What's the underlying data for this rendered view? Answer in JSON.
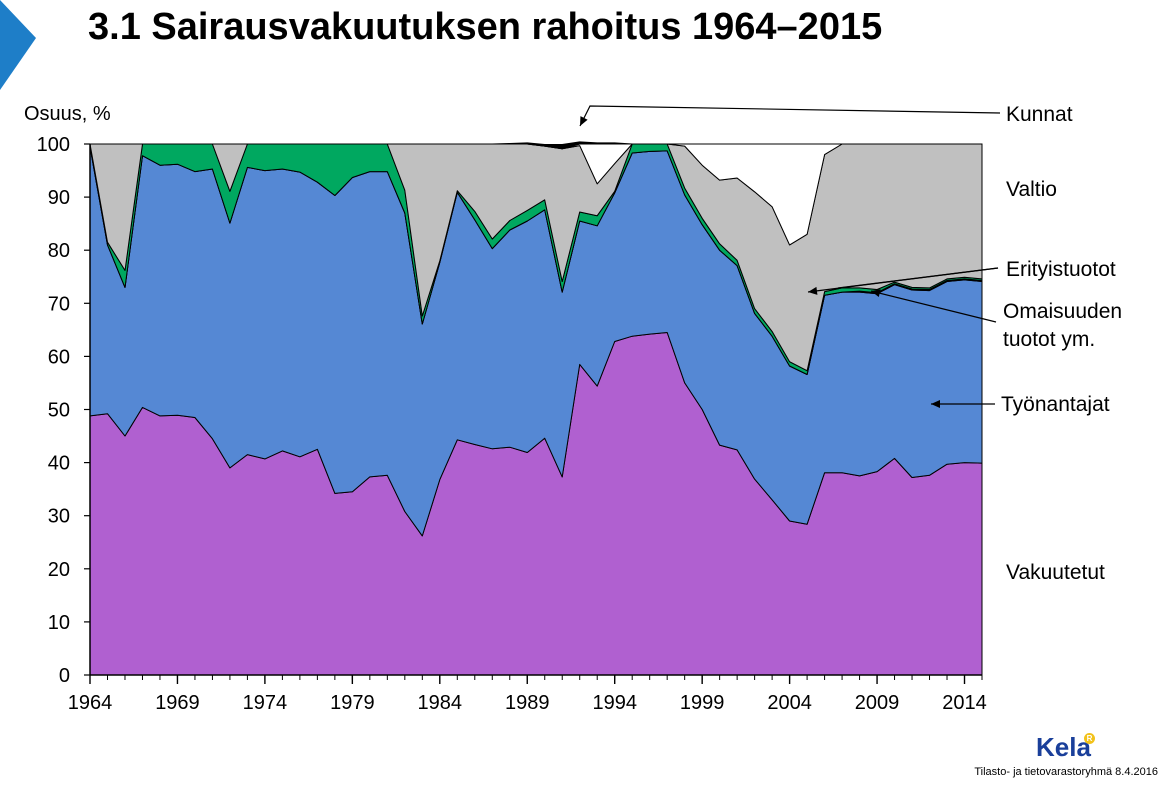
{
  "slide": {
    "title": "3.1 Sairausvakuutuksen rahoitus 1964–2015",
    "footer": "Tilasto- ja tietovarastoryhmä 8.4.2016",
    "logo_text": "Kela",
    "logo_mark": "R",
    "colors": {
      "corner": "#1e7ec8",
      "logo": "#1a3f9a",
      "logo_mark": "#f2c21b"
    }
  },
  "chart_data": {
    "type": "area",
    "stacked": true,
    "ylabel": "Osuus, %",
    "xlabel": "",
    "xlim": [
      1964,
      2015
    ],
    "ylim": [
      0,
      100
    ],
    "yticks": [
      0,
      10,
      20,
      30,
      40,
      50,
      60,
      70,
      80,
      90,
      100
    ],
    "xticks": [
      1964,
      1969,
      1974,
      1979,
      1984,
      1989,
      1994,
      1999,
      2004,
      2009,
      2014
    ],
    "grid": false,
    "legend": "inline labels right",
    "x": [
      1964,
      1965,
      1966,
      1967,
      1968,
      1969,
      1970,
      1971,
      1972,
      1973,
      1974,
      1975,
      1976,
      1977,
      1978,
      1979,
      1980,
      1981,
      1982,
      1983,
      1984,
      1985,
      1986,
      1987,
      1988,
      1989,
      1990,
      1991,
      1992,
      1993,
      1994,
      1995,
      1996,
      1997,
      1998,
      1999,
      2000,
      2001,
      2002,
      2003,
      2004,
      2005,
      2006,
      2007,
      2008,
      2009,
      2010,
      2011,
      2012,
      2013,
      2014,
      2015
    ],
    "series": [
      {
        "name": "Vakuutetut",
        "color": "#b060d0",
        "values": [
          48.8,
          49.2,
          45,
          50.4,
          48.8,
          48.9,
          48.5,
          44.5,
          39,
          41.5,
          40.7,
          42.2,
          41.1,
          42.5,
          34.2,
          34.5,
          37.3,
          37.6,
          30.8,
          26.2,
          36.8,
          44.3,
          43.4,
          42.6,
          42.9,
          41.9,
          44.6,
          37.3,
          58.5,
          54.4,
          62.8,
          63.8,
          64.2,
          64.5,
          55,
          50,
          43.3,
          42.4,
          36.9,
          33,
          29,
          28.4,
          38.1,
          38.1,
          37.5,
          38.3,
          40.8,
          37.2,
          37.6,
          39.7,
          40,
          39.9
        ]
      },
      {
        "name": "Työnantajat",
        "color": "#5588d4",
        "values": [
          50.7,
          31.8,
          28,
          47.4,
          47.2,
          47.3,
          46.3,
          50.8,
          46.1,
          54.1,
          54.3,
          53.1,
          53.6,
          50.3,
          56.1,
          59.2,
          57.5,
          57.2,
          56.2,
          39.9,
          40.9,
          46.6,
          42.3,
          37.7,
          40.9,
          43.6,
          43,
          34.8,
          27,
          30.2,
          28,
          34.5,
          34.4,
          34.2,
          35.4,
          34.8,
          36.7,
          34.7,
          31.2,
          30.8,
          29.2,
          28.2,
          33.4,
          34,
          34.6,
          33.5,
          32.7,
          35.3,
          34.8,
          34.4,
          34.4,
          34.2
        ]
      },
      {
        "name": "Erityistuotot",
        "color": "#000000",
        "values": [
          0,
          0,
          0,
          0,
          0,
          0,
          0,
          0,
          0,
          0,
          0,
          0,
          0,
          0,
          0,
          0,
          0,
          0,
          0,
          0,
          0,
          0,
          0,
          0,
          0,
          0,
          0,
          0,
          0,
          0,
          0,
          0,
          0,
          0,
          0,
          0,
          0,
          0,
          0,
          0,
          0,
          0,
          0,
          0,
          0.2,
          0.2,
          0.2,
          0.2,
          0.2,
          0.2,
          0.2,
          0.2
        ]
      },
      {
        "name": "Omaisuuden tuotot ym.",
        "color": "#00a860",
        "values": [
          0.5,
          0.5,
          3.2,
          2.2,
          4,
          3.8,
          5.2,
          4.7,
          6,
          4.4,
          5,
          4.7,
          5.3,
          7.2,
          9.7,
          6.3,
          5.2,
          5.2,
          4.3,
          1.5,
          0.3,
          0.3,
          1.6,
          1.8,
          1.8,
          2,
          1.9,
          2,
          1.7,
          1.9,
          0.3,
          1.7,
          1.4,
          1.3,
          1.3,
          1.2,
          1.2,
          1,
          0.9,
          0.9,
          0.8,
          0.7,
          0.7,
          0.8,
          0.6,
          0.6,
          0.3,
          0.3,
          0.3,
          0.3,
          0.3,
          0.3
        ]
      },
      {
        "name": "Valtio",
        "color": "#c0c0c0",
        "values": [
          0,
          18.5,
          23.8,
          0,
          0,
          0,
          0,
          0,
          8.9,
          0,
          0,
          0,
          0,
          0,
          0,
          0,
          0,
          0,
          8.7,
          32.4,
          22,
          8.8,
          12.7,
          17.9,
          14.4,
          12.5,
          10.1,
          25,
          12.5,
          6,
          5.2,
          0,
          0,
          0,
          7.9,
          10,
          12,
          15.5,
          22,
          23.5,
          22,
          25.7,
          25.8,
          27.1,
          27.1,
          27.4,
          26,
          27,
          27.1,
          25.4,
          25.1,
          25.4
        ]
      },
      {
        "name": "Erityistuotot (valkoinen)",
        "color": "#ffffff",
        "values": [
          0,
          0,
          0,
          0,
          0,
          0,
          0,
          0,
          0,
          0,
          0,
          0,
          0,
          0,
          0,
          0,
          0,
          0,
          0,
          0,
          0,
          0,
          0,
          0,
          0,
          0,
          0,
          0,
          0.3,
          7.5,
          3.7,
          0,
          0,
          0,
          0.4,
          4,
          6.8,
          6.4,
          9,
          11.8,
          19,
          17,
          2,
          0,
          0,
          0,
          0,
          0,
          0,
          0,
          0,
          0
        ]
      },
      {
        "name": "Kunnat",
        "color": "#000000",
        "values": [
          0,
          0,
          0,
          0,
          0,
          0,
          0,
          0,
          0,
          0,
          0,
          0,
          0,
          0,
          0,
          0,
          0,
          0,
          0,
          0,
          0,
          0,
          0,
          0,
          0.1,
          0.2,
          0.3,
          0.8,
          0.4,
          0.2,
          0.2,
          0,
          0,
          0,
          0,
          0,
          0,
          0,
          0,
          0,
          0,
          0,
          0,
          0,
          0,
          0,
          0,
          0,
          0,
          0,
          0,
          0
        ]
      }
    ],
    "annotations": {
      "kunnat": "Kunnat",
      "valtio": "Valtio",
      "erityistuotot": "Erityistuotot",
      "omaisuus_line1": "Omaisuuden",
      "omaisuus_line2": "tuotot ym.",
      "tyonantajat": "Työnantajat",
      "vakuutetut": "Vakuutetut"
    }
  }
}
